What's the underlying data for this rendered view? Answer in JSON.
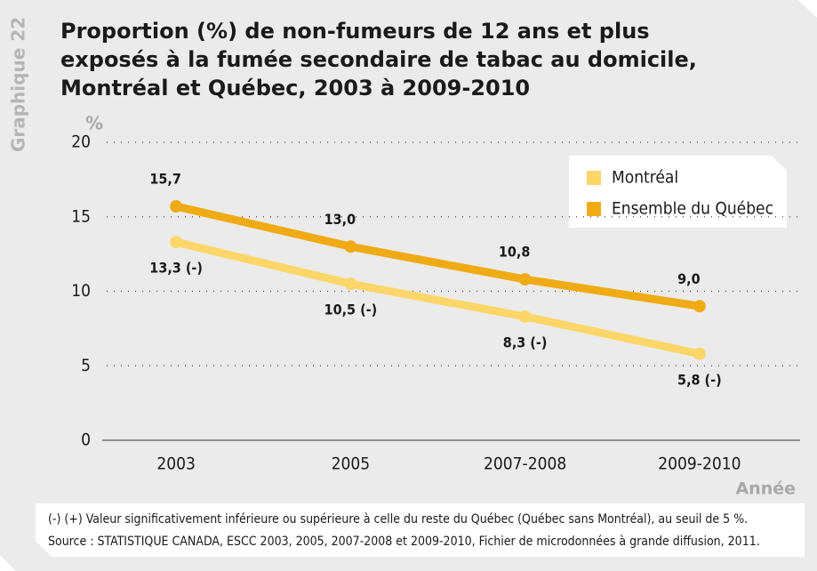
{
  "side_label": "Graphique 22",
  "chart_data": {
    "type": "line",
    "title": [
      "Proportion (%) de non-fumeurs de 12 ans et plus",
      "exposés à la fumée secondaire de tabac au domicile,",
      "Montréal et Québec, 2003 à 2009-2010"
    ],
    "y_label": "%",
    "x_label": "Année",
    "categories": [
      "2003",
      "2005",
      "2007-2008",
      "2009-2010"
    ],
    "series": [
      {
        "name": "Montréal",
        "color": "#fdd66a",
        "values": [
          13.3,
          10.5,
          8.3,
          5.8
        ],
        "value_labels": [
          "13,3 (-)",
          "10,5 (-)",
          "8,3 (-)",
          "5,8 (-)"
        ]
      },
      {
        "name": "Ensemble du Québec",
        "color": "#f0ab14",
        "values": [
          15.7,
          13.0,
          10.8,
          9.0
        ],
        "value_labels": [
          "15,7",
          "13,0",
          "10,8",
          "9,0"
        ]
      }
    ],
    "ylim": [
      0,
      20
    ],
    "yticks": [
      0,
      5,
      10,
      15,
      20
    ],
    "grid": true,
    "legend": "upper right",
    "notes": [
      "(-) (+) Valeur significativement inférieure ou supérieure à celle du reste du Québec (Québec sans Montréal), au seuil de 5 %.",
      "Source : STATISTIQUE CANADA, ESCC 2003, 2005, 2007-2008 et 2009-2010, Fichier de microdonnées à grande diffusion, 2011."
    ]
  }
}
